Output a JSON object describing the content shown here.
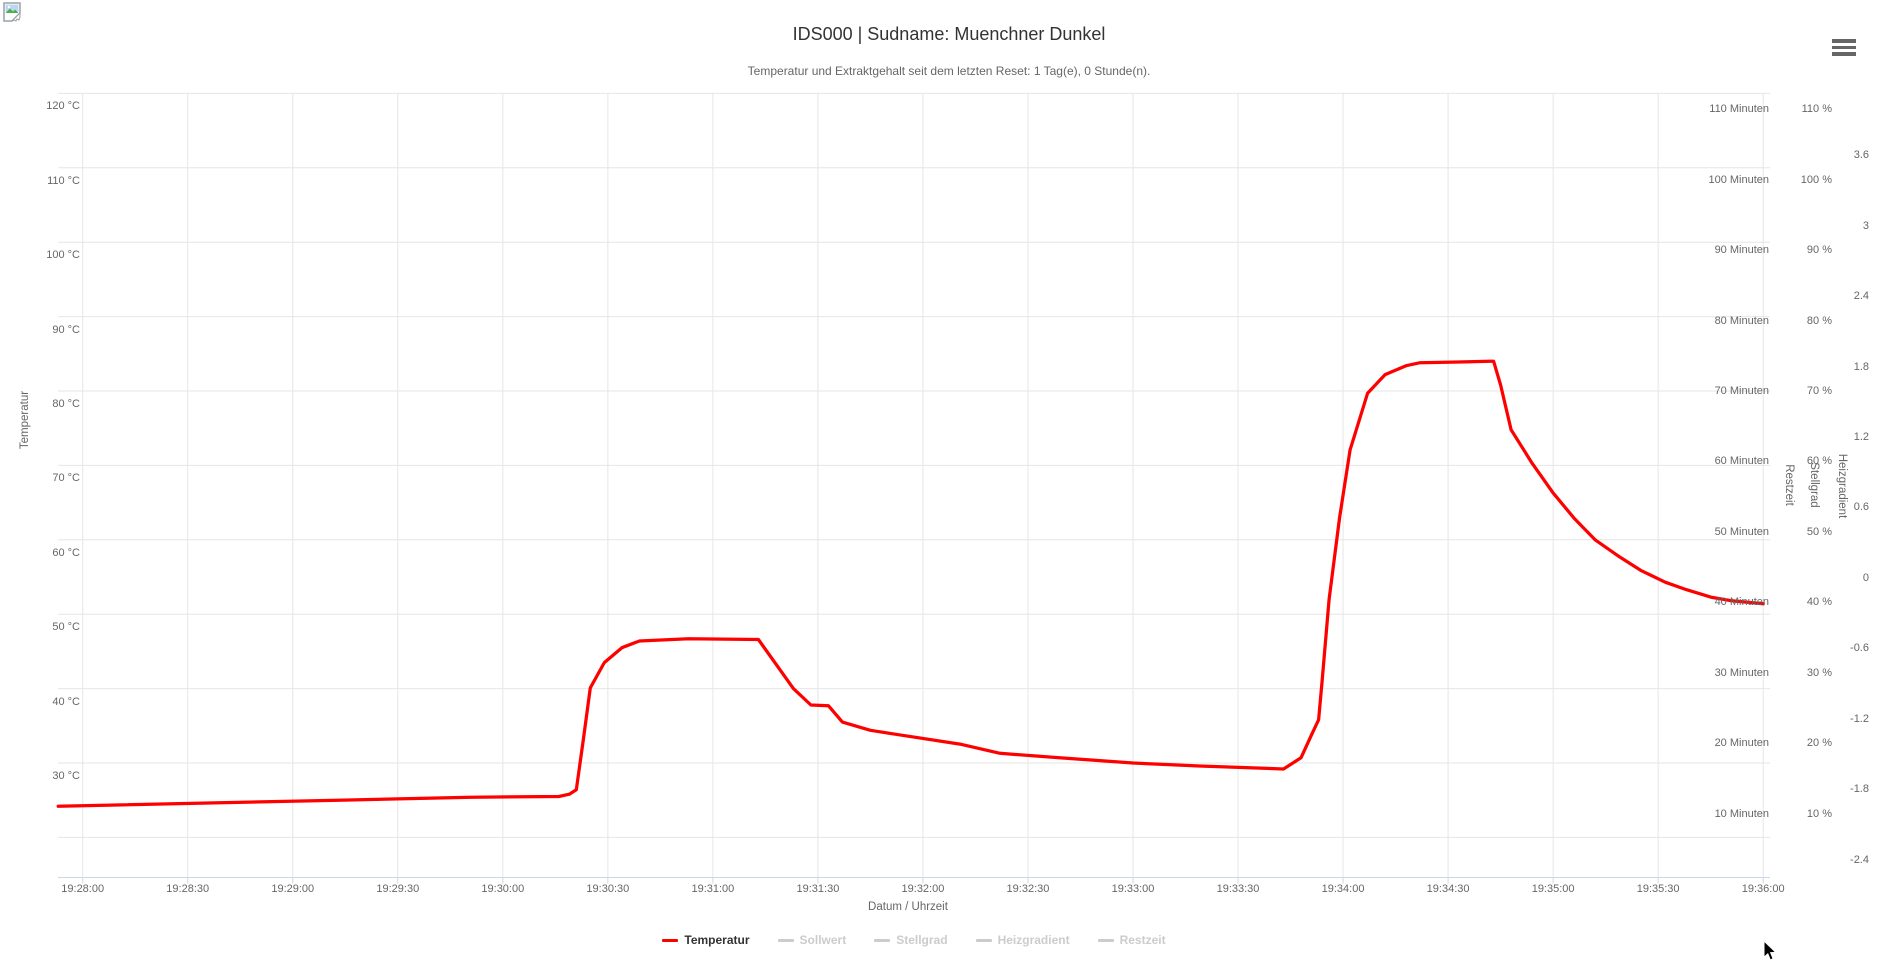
{
  "header": {
    "title": "IDS000 | Sudname: Muenchner Dunkel",
    "subtitle": "Temperatur und Extraktgehalt seit dem letzten Reset: 1 Tag(e), 0 Stunde(n)."
  },
  "menu": {
    "icon": "hamburger-icon",
    "color": "#666666"
  },
  "colors": {
    "series_red": "#ff0000",
    "grid": "#e6e6e6",
    "axis_line": "#ccd6eb",
    "label": "#666666",
    "title": "#333333",
    "legend_disabled": "#cccccc"
  },
  "chart_data": {
    "type": "line",
    "title": "IDS000 | Sudname: Muenchner Dunkel",
    "subtitle": "Temperatur und Extraktgehalt seit dem letzten Reset: 1 Tag(e), 0 Stunde(n).",
    "grid": true,
    "legend_position": "bottom-center",
    "x_axis": {
      "title": "Datum / Uhrzeit",
      "tick_interval_seconds": 30,
      "tick_labels": [
        "19:28:00",
        "19:28:30",
        "19:29:00",
        "19:29:30",
        "19:30:00",
        "19:30:30",
        "19:31:00",
        "19:31:30",
        "19:32:00",
        "19:32:30",
        "19:33:00",
        "19:33:30",
        "19:34:00",
        "19:34:30",
        "19:35:00",
        "19:35:30",
        "19:36:00"
      ],
      "visible_range": [
        "19:27:53",
        "19:36:02"
      ]
    },
    "y_axes": [
      {
        "id": "temperatur",
        "title": "Temperatur",
        "side": "left",
        "unit": "°C",
        "tick_values": [
          120,
          110,
          100,
          90,
          80,
          70,
          60,
          50,
          40,
          30
        ],
        "tick_suffix": " °C",
        "ylim_at_plot_edges": [
          14.6,
          120.1
        ]
      },
      {
        "id": "restzeit",
        "title": "Restzeit",
        "side": "right",
        "unit": "Minuten",
        "tick_values": [
          110,
          100,
          90,
          80,
          70,
          60,
          50,
          40,
          30,
          20,
          10
        ],
        "tick_suffix": " Minuten"
      },
      {
        "id": "stellgrad",
        "title": "Stellgrad",
        "side": "right",
        "unit": "%",
        "tick_values": [
          110,
          100,
          90,
          80,
          70,
          60,
          50,
          40,
          30,
          20,
          10
        ],
        "tick_suffix": " %"
      },
      {
        "id": "heizgradient",
        "title": "Heizgradient",
        "side": "right",
        "unit": "",
        "tick_labels": [
          "3.6",
          "3",
          "2.4",
          "1.8",
          "1.2",
          "0.6",
          "0",
          "-0.6",
          "-1.2",
          "-1.8",
          "-2.4"
        ]
      }
    ],
    "series": [
      {
        "name": "Temperatur",
        "color": "#ff0000",
        "visible": true,
        "axis": "temperatur",
        "points_time_offset_base": "19:28:00",
        "points": [
          [
            -7,
            24.2
          ],
          [
            73,
            25.0
          ],
          [
            111,
            25.4
          ],
          [
            136,
            25.5
          ],
          [
            139,
            25.8
          ],
          [
            141,
            26.4
          ],
          [
            143,
            33.1
          ],
          [
            145,
            40.1
          ],
          [
            149,
            43.5
          ],
          [
            154,
            45.5
          ],
          [
            159,
            46.4
          ],
          [
            173,
            46.7
          ],
          [
            193,
            46.6
          ],
          [
            203,
            40.0
          ],
          [
            208,
            37.8
          ],
          [
            213,
            37.7
          ],
          [
            217,
            35.5
          ],
          [
            225,
            34.4
          ],
          [
            233,
            33.8
          ],
          [
            251,
            32.5
          ],
          [
            262,
            31.3
          ],
          [
            279,
            30.7
          ],
          [
            300,
            30.0
          ],
          [
            319,
            29.6
          ],
          [
            343,
            29.2
          ],
          [
            348,
            30.7
          ],
          [
            351,
            33.8
          ],
          [
            353,
            35.8
          ],
          [
            354,
            41.0
          ],
          [
            356,
            52.0
          ],
          [
            359,
            63.0
          ],
          [
            362,
            72.1
          ],
          [
            367,
            79.7
          ],
          [
            372,
            82.2
          ],
          [
            378,
            83.4
          ],
          [
            382,
            83.8
          ],
          [
            393,
            83.9
          ],
          [
            402,
            84.0
          ],
          [
            403,
            84.0
          ],
          [
            405,
            80.8
          ],
          [
            408,
            74.8
          ],
          [
            414,
            70.3
          ],
          [
            420,
            66.3
          ],
          [
            426,
            62.9
          ],
          [
            432,
            60.0
          ],
          [
            439,
            57.7
          ],
          [
            445,
            55.9
          ],
          [
            452,
            54.3
          ],
          [
            458,
            53.3
          ],
          [
            465,
            52.3
          ],
          [
            471,
            51.8
          ],
          [
            480,
            51.4
          ]
        ]
      },
      {
        "name": "Sollwert",
        "visible": false,
        "points": []
      },
      {
        "name": "Stellgrad",
        "visible": false,
        "points": []
      },
      {
        "name": "Heizgradient",
        "visible": false,
        "points": []
      },
      {
        "name": "Restzeit",
        "visible": false,
        "points": []
      }
    ],
    "legend": [
      {
        "label": "Temperatur",
        "color": "#ff0000",
        "enabled": true
      },
      {
        "label": "Sollwert",
        "color": "#cccccc",
        "enabled": false
      },
      {
        "label": "Stellgrad",
        "color": "#cccccc",
        "enabled": false
      },
      {
        "label": "Heizgradient",
        "color": "#cccccc",
        "enabled": false
      },
      {
        "label": "Restzeit",
        "color": "#cccccc",
        "enabled": false
      }
    ]
  }
}
